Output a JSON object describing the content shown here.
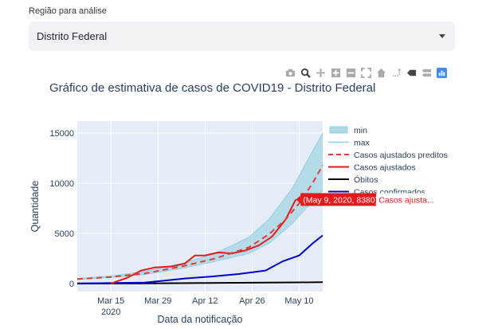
{
  "region_select": {
    "label": "Região para análise",
    "value": "Distrito Federal"
  },
  "modebar": {
    "buttons": [
      "camera-icon",
      "zoom-icon",
      "pan-icon",
      "zoom-in-icon",
      "zoom-out-icon",
      "autoscale-icon",
      "reset-axes-icon",
      "spike-lines-icon",
      "hover-closest-icon",
      "hover-compare-icon",
      "plotly-logo-icon"
    ]
  },
  "colors": {
    "band_fill": "#add8e6",
    "band_line": "#8fd0ea",
    "adjusted_predicted": "#e53935",
    "adjusted": "#e31a1c",
    "deaths": "#000000",
    "confirmed": "#0000cd",
    "plot_bg": "#e5ecf6",
    "hover_bg": "#e31a1c"
  },
  "hover": {
    "label": "(May 9, 2020, 8380)",
    "series": "Casos ajusta..."
  },
  "chart_data": {
    "type": "line",
    "title": "Gráfico de estimativa de casos de COVID19 - Distrito Federal",
    "xlabel": "Data da notificação",
    "ylabel": "Quantidade",
    "x_range": [
      "2020-03-05",
      "2020-05-17"
    ],
    "ylim": [
      -800,
      16200
    ],
    "y_ticks": [
      0,
      5000,
      10000,
      15000
    ],
    "y_tick_labels": [
      "0",
      "5000",
      "10000",
      "15000"
    ],
    "x_ticks": [
      {
        "date": "2020-03-15",
        "label": "Mar 15",
        "sublabel": "2020"
      },
      {
        "date": "2020-03-29",
        "label": "Mar 29",
        "sublabel": ""
      },
      {
        "date": "2020-04-12",
        "label": "Apr 12",
        "sublabel": ""
      },
      {
        "date": "2020-04-26",
        "label": "Apr 26",
        "sublabel": ""
      },
      {
        "date": "2020-05-10",
        "label": "May 10",
        "sublabel": ""
      }
    ],
    "legend_position": "top-right",
    "series": [
      {
        "name": "min",
        "kind": "band-lower",
        "x": [
          "2020-03-05",
          "2020-03-15",
          "2020-03-25",
          "2020-04-05",
          "2020-04-15",
          "2020-04-25",
          "2020-05-01",
          "2020-05-08",
          "2020-05-12",
          "2020-05-17"
        ],
        "y": [
          400,
          600,
          900,
          1500,
          2200,
          3000,
          4000,
          6000,
          7500,
          9300
        ]
      },
      {
        "name": "max",
        "kind": "band-upper",
        "x": [
          "2020-03-05",
          "2020-03-15",
          "2020-03-25",
          "2020-04-05",
          "2020-04-15",
          "2020-04-25",
          "2020-05-01",
          "2020-05-08",
          "2020-05-12",
          "2020-05-17"
        ],
        "y": [
          500,
          750,
          1200,
          2000,
          3000,
          4600,
          6400,
          9500,
          12000,
          15000
        ]
      },
      {
        "name": "Casos ajustados preditos",
        "kind": "dashed",
        "x": [
          "2020-03-05",
          "2020-03-15",
          "2020-03-25",
          "2020-04-05",
          "2020-04-15",
          "2020-04-25",
          "2020-05-01",
          "2020-05-06",
          "2020-05-10",
          "2020-05-14",
          "2020-05-17"
        ],
        "y": [
          450,
          650,
          1000,
          1700,
          2500,
          3600,
          4900,
          6400,
          8000,
          10000,
          11800
        ]
      },
      {
        "name": "Casos ajustados",
        "kind": "solid",
        "x": [
          "2020-03-15",
          "2020-03-20",
          "2020-03-24",
          "2020-03-28",
          "2020-04-02",
          "2020-04-06",
          "2020-04-09",
          "2020-04-12",
          "2020-04-16",
          "2020-04-20",
          "2020-04-24",
          "2020-04-28",
          "2020-05-02",
          "2020-05-06",
          "2020-05-09"
        ],
        "y": [
          0,
          600,
          1300,
          1600,
          1700,
          2000,
          2800,
          2800,
          3100,
          3000,
          3300,
          3800,
          4700,
          6400,
          8380
        ]
      },
      {
        "name": "Óbitos",
        "kind": "solid",
        "x": [
          "2020-03-05",
          "2020-03-25",
          "2020-04-12",
          "2020-04-26",
          "2020-05-10",
          "2020-05-17"
        ],
        "y": [
          0,
          20,
          50,
          80,
          110,
          140
        ]
      },
      {
        "name": "Casos confirmados",
        "kind": "solid",
        "x": [
          "2020-03-05",
          "2020-03-25",
          "2020-03-31",
          "2020-04-06",
          "2020-04-14",
          "2020-04-22",
          "2020-04-30",
          "2020-05-05",
          "2020-05-10",
          "2020-05-14",
          "2020-05-17"
        ],
        "y": [
          0,
          100,
          300,
          500,
          700,
          950,
          1300,
          2200,
          2800,
          4000,
          4800
        ]
      }
    ]
  }
}
